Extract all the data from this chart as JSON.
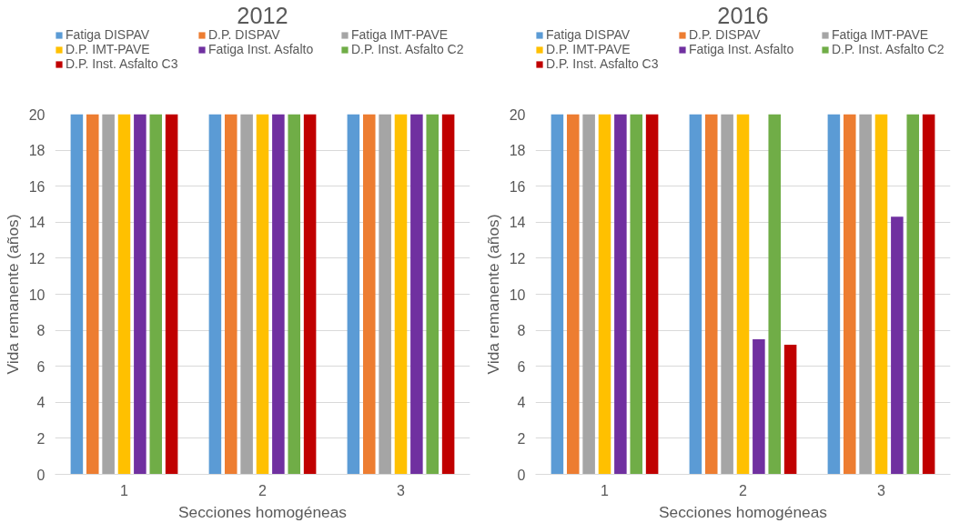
{
  "chart_data": [
    {
      "type": "bar",
      "title": "2012",
      "xlabel": "Secciones homogéneas",
      "ylabel": "Vida remanente (años)",
      "categories": [
        "1",
        "2",
        "3"
      ],
      "ylim": [
        0,
        20
      ],
      "yticks": [
        0,
        2,
        4,
        6,
        8,
        10,
        12,
        14,
        16,
        18,
        20
      ],
      "grid": "y",
      "legend": "top",
      "series": [
        {
          "name": "Fatiga DISPAV",
          "color": "#5b9bd5",
          "values": [
            20,
            20,
            20
          ]
        },
        {
          "name": "D.P. DISPAV",
          "color": "#ed7d31",
          "values": [
            20,
            20,
            20
          ]
        },
        {
          "name": "Fatiga IMT-PAVE",
          "color": "#a5a5a5",
          "values": [
            20,
            20,
            20
          ]
        },
        {
          "name": "D.P. IMT-PAVE",
          "color": "#ffc000",
          "values": [
            20,
            20,
            20
          ]
        },
        {
          "name": "Fatiga Inst. Asfalto",
          "color": "#7030a0",
          "values": [
            20,
            20,
            20
          ]
        },
        {
          "name": "D.P. Inst. Asfalto C2",
          "color": "#70ad47",
          "values": [
            20,
            20,
            20
          ]
        },
        {
          "name": "D.P. Inst. Asfalto C3",
          "color": "#c00000",
          "values": [
            20,
            20,
            20
          ]
        }
      ]
    },
    {
      "type": "bar",
      "title": "2016",
      "xlabel": "Secciones homogéneas",
      "ylabel": "Vida remanente (años)",
      "categories": [
        "1",
        "2",
        "3"
      ],
      "ylim": [
        0,
        20
      ],
      "yticks": [
        0,
        2,
        4,
        6,
        8,
        10,
        12,
        14,
        16,
        18,
        20
      ],
      "grid": "y",
      "legend": "top",
      "series": [
        {
          "name": "Fatiga DISPAV",
          "color": "#5b9bd5",
          "values": [
            20,
            20,
            20
          ]
        },
        {
          "name": "D.P. DISPAV",
          "color": "#ed7d31",
          "values": [
            20,
            20,
            20
          ]
        },
        {
          "name": "Fatiga IMT-PAVE",
          "color": "#a5a5a5",
          "values": [
            20,
            20,
            20
          ]
        },
        {
          "name": "D.P. IMT-PAVE",
          "color": "#ffc000",
          "values": [
            20,
            20,
            20
          ]
        },
        {
          "name": "Fatiga Inst. Asfalto",
          "color": "#7030a0",
          "values": [
            20,
            7.5,
            14.3
          ]
        },
        {
          "name": "D.P. Inst. Asfalto C2",
          "color": "#70ad47",
          "values": [
            20,
            20,
            20
          ]
        },
        {
          "name": "D.P. Inst. Asfalto C3",
          "color": "#c00000",
          "values": [
            20,
            7.2,
            20
          ]
        }
      ]
    }
  ]
}
